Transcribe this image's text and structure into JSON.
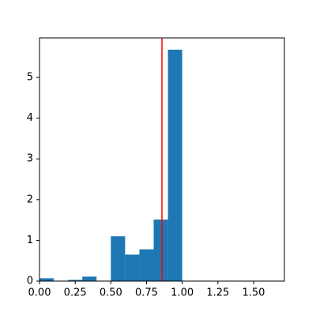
{
  "chart_data": {
    "type": "histogram",
    "bins": [
      0,
      0.1,
      0.2,
      0.3,
      0.4,
      0.5,
      0.6,
      0.7,
      0.8,
      0.9,
      1.0
    ],
    "values": [
      0.07,
      0,
      0.03,
      0.11,
      0.01,
      1.1,
      0.65,
      0.78,
      1.51,
      5.68
    ],
    "color": "#1f77b4",
    "vline": {
      "value": 0.858,
      "color": "#ff0000"
    },
    "xlim": [
      0,
      1.716
    ],
    "ylim": [
      0,
      5.97
    ],
    "xticks": [
      {
        "value": 0,
        "label": "0.00"
      },
      {
        "value": 0.25,
        "label": "0.25"
      },
      {
        "value": 0.5,
        "label": "0.50"
      },
      {
        "value": 0.75,
        "label": "0.75"
      },
      {
        "value": 1.0,
        "label": "1.00"
      },
      {
        "value": 1.25,
        "label": "1.25"
      },
      {
        "value": 1.5,
        "label": "1.50"
      }
    ],
    "yticks": [
      0,
      1,
      2,
      3,
      4,
      5
    ]
  }
}
